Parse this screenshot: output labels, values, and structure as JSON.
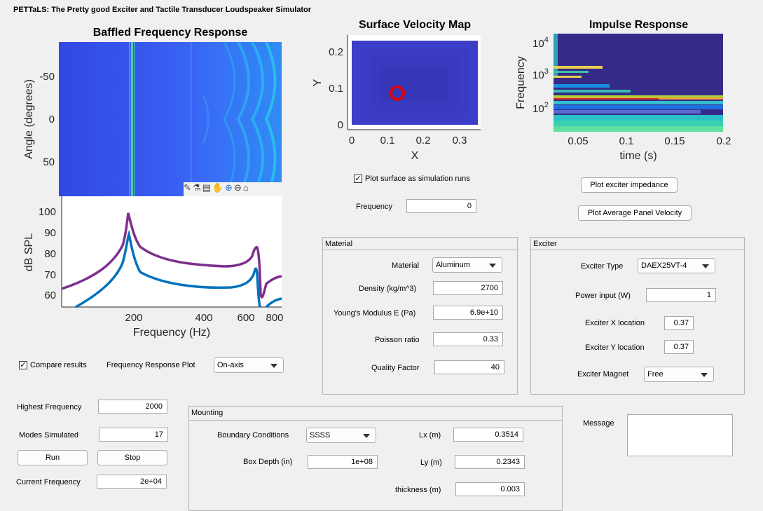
{
  "app_title": "PETTaLS: The Pretty good Exciter and Tactile Transducer Loudspeaker Simulator",
  "baffled": {
    "title": "Baffled Frequency Response",
    "ylabel": "Angle (degrees)",
    "yticks": [
      "-50",
      "0",
      "50"
    ]
  },
  "spl": {
    "ylabel": "dB SPL",
    "xlabel": "Frequency (Hz)",
    "yticks": [
      "100",
      "90",
      "80",
      "70",
      "60"
    ],
    "xticks": [
      "200",
      "400",
      "600",
      "800"
    ]
  },
  "surface": {
    "title": "Surface Velocity Map",
    "xlabel": "X",
    "ylabel": "Y",
    "xticks": [
      "0",
      "0.1",
      "0.2",
      "0.3"
    ],
    "yticks": [
      "0.2",
      "0.1",
      "0"
    ]
  },
  "impulse": {
    "title": "Impulse Response",
    "xlabel": "time (s)",
    "ylabel": "Frequency",
    "xticks": [
      "0.05",
      "0.1",
      "0.15",
      "0.2"
    ],
    "ytick_base": "10",
    "ytick_exps": [
      "4",
      "3",
      "2"
    ]
  },
  "plot_surface_checkbox": {
    "label": "Plot surface as simulation runs",
    "checked": true
  },
  "frequency": {
    "label": "Frequency",
    "value": "0"
  },
  "buttons": {
    "plot_exciter_impedance": "Plot exciter impedance",
    "plot_avg_velocity": "Plot Average Panel Velocity",
    "run": "Run",
    "stop": "Stop"
  },
  "material": {
    "title": "Material",
    "material_label": "Material",
    "material_value": "Aluminum",
    "density_label": "Density (kg/m^3)",
    "density_value": "2700",
    "youngs_label": "Young's Modulus E (Pa)",
    "youngs_value": "6.9e+10",
    "poisson_label": "Poisson ratio",
    "poisson_value": "0.33",
    "quality_label": "Quality Factor",
    "quality_value": "40"
  },
  "exciter": {
    "title": "Exciter",
    "type_label": "Exciter Type",
    "type_value": "DAEX25VT-4",
    "power_label": "Power input (W)",
    "power_value": "1",
    "xloc_label": "Exciter X location",
    "xloc_value": "0.37",
    "yloc_label": "Exciter Y location",
    "yloc_value": "0.37",
    "magnet_label": "Exciter Magnet",
    "magnet_value": "Free"
  },
  "compare": {
    "label": "Compare results",
    "checked": true
  },
  "freq_response_plot": {
    "label": "Frequency Response Plot",
    "value": "On-axis"
  },
  "highest_frequency": {
    "label": "Highest Frequency",
    "value": "2000"
  },
  "modes_simulated": {
    "label": "Modes Simulated",
    "value": "17"
  },
  "current_frequency": {
    "label": "Current Frequency",
    "value": "2e+04"
  },
  "mounting": {
    "title": "Mounting",
    "boundary_label": "Boundary Conditions",
    "boundary_value": "SSSS",
    "box_depth_label": "Box Depth (in)",
    "box_depth_value": "1e+08",
    "lx_label": "Lx (m)",
    "lx_value": "0.3514",
    "ly_label": "Ly (m)",
    "ly_value": "0.2343",
    "thickness_label": "thickness (m)",
    "thickness_value": "0.003"
  },
  "message": {
    "label": "Message",
    "value": ""
  },
  "colors": {
    "series_purple": "#7e2f8e",
    "series_blue": "#0072bd",
    "map_base": "#3a3fcf",
    "accent_red": "#e00000"
  }
}
